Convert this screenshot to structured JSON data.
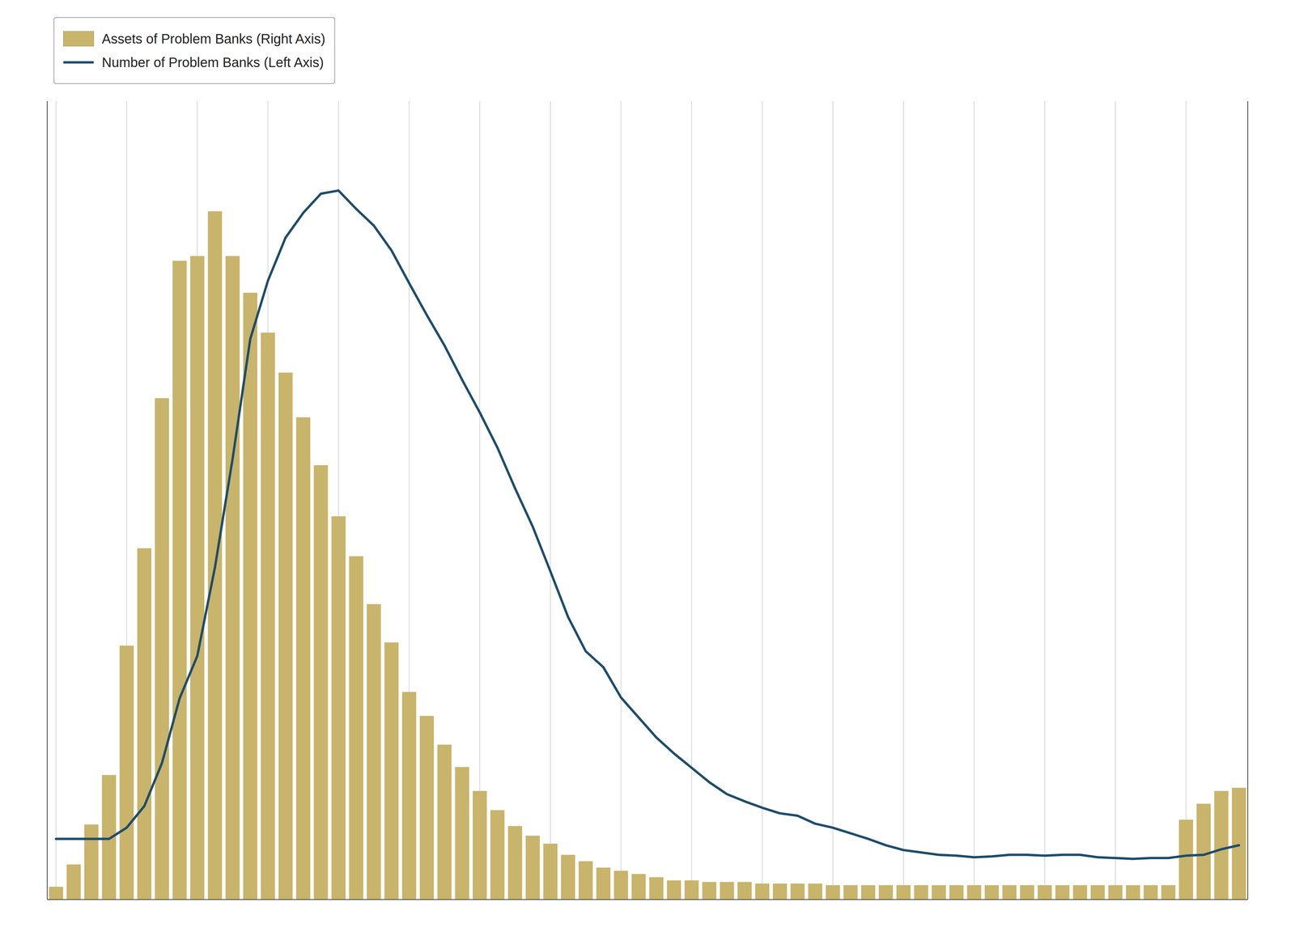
{
  "chart_data": {
    "type": "bar",
    "categories": [
      null,
      null,
      null,
      null,
      null,
      null,
      null,
      null,
      null,
      null,
      null,
      null,
      null,
      null,
      null,
      null,
      null,
      null,
      null,
      null,
      null,
      null,
      null,
      null,
      null,
      null,
      null,
      null,
      null,
      null,
      null,
      null,
      null,
      null,
      null,
      null,
      null,
      null,
      null,
      null,
      null,
      null,
      null,
      null,
      null,
      null,
      null,
      null,
      null,
      null,
      null,
      null,
      null,
      null,
      null,
      null,
      null,
      null,
      null,
      null,
      null,
      null,
      null,
      null,
      null,
      null,
      null,
      null
    ],
    "series": [
      {
        "name": "Assets of Problem Banks (Right Axis)",
        "type": "bar",
        "axis": "y2",
        "color": "#C8B46A",
        "values": [
          8,
          22,
          47,
          78,
          159,
          220,
          314,
          400,
          403,
          431,
          403,
          380,
          355,
          330,
          302,
          272,
          240,
          215,
          185,
          161,
          130,
          115,
          97,
          83,
          68,
          56,
          46,
          40,
          35,
          28,
          24,
          20,
          18,
          16,
          14,
          12,
          12,
          11,
          11,
          11,
          10,
          10,
          10,
          10,
          9,
          9,
          9,
          9,
          9,
          9,
          9,
          9,
          9,
          9,
          9,
          9,
          9,
          9,
          9,
          9,
          9,
          9,
          9,
          9,
          50,
          60,
          68,
          70
        ]
      },
      {
        "name": "Number of Problem Banks (Left Axis)",
        "type": "line",
        "color": "#1E4D6B",
        "values": [
          76,
          76,
          76,
          76,
          90,
          117,
          171,
          252,
          305,
          416,
          552,
          702,
          775,
          829,
          860,
          884,
          888,
          865,
          844,
          813,
          772,
          732,
          694,
          651,
          610,
          566,
          515,
          467,
          411,
          354,
          311,
          291,
          253,
          228,
          203,
          183,
          165,
          147,
          132,
          123,
          115,
          108,
          105,
          95,
          90,
          83,
          76,
          68,
          62,
          59,
          56,
          55,
          53,
          54,
          56,
          56,
          55,
          56,
          56,
          53,
          52,
          51,
          52,
          52,
          55,
          56,
          63,
          68
        ]
      }
    ],
    "ylim": [
      0,
      1000
    ],
    "y2lim": [
      0,
      500
    ],
    "grid": true,
    "legend": "upper left",
    "tick_labels": false
  }
}
